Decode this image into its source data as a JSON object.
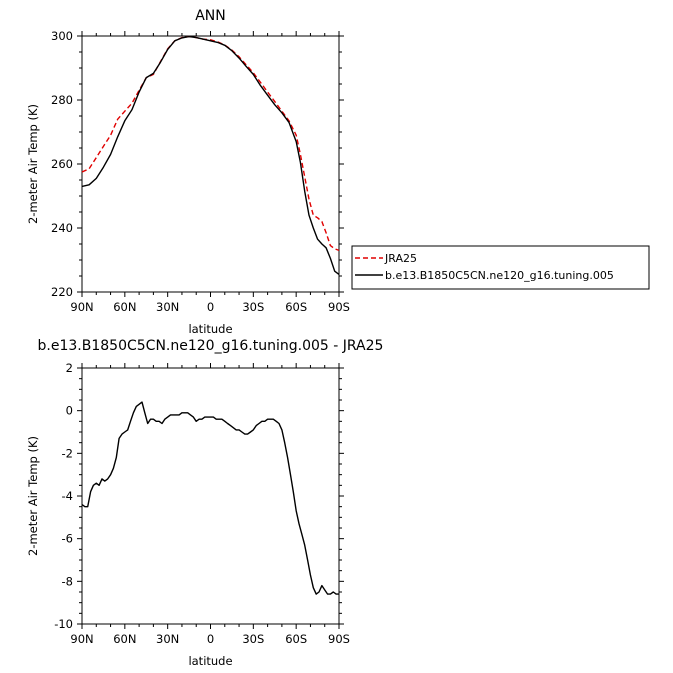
{
  "chart_data": [
    {
      "type": "line",
      "title": "ANN",
      "xlabel": "latitude",
      "ylabel": "2-meter Air Temp (K)",
      "x_ticks": [
        "90N",
        "60N",
        "30N",
        "0",
        "30S",
        "60S",
        "90S"
      ],
      "x_tick_values": [
        90,
        60,
        30,
        0,
        -30,
        -60,
        -90
      ],
      "xlim": [
        90,
        -90
      ],
      "ylim": [
        220,
        300
      ],
      "y_ticks": [
        "220",
        "240",
        "260",
        "280",
        "300"
      ],
      "y_tick_values": [
        220,
        240,
        260,
        280,
        300
      ],
      "legend_position": "right",
      "series": [
        {
          "name": "JRA25",
          "color": "#e00000",
          "dash": "dashed",
          "x": [
            90,
            85,
            80,
            75,
            70,
            65,
            60,
            55,
            50,
            45,
            40,
            35,
            30,
            25,
            20,
            15,
            10,
            5,
            0,
            -5,
            -10,
            -15,
            -20,
            -25,
            -30,
            -35,
            -40,
            -45,
            -50,
            -55,
            -60,
            -63,
            -66,
            -69,
            -72,
            -75,
            -78,
            -81,
            -84,
            -87,
            -90
          ],
          "y": [
            257.5,
            258.5,
            262,
            265.5,
            269,
            274,
            276.5,
            279,
            283,
            287,
            288,
            292,
            296,
            298.5,
            299.5,
            299.8,
            299.5,
            299,
            298.8,
            298.2,
            297.2,
            295.6,
            293.5,
            291,
            288.5,
            285.5,
            282.5,
            279.5,
            276.5,
            273.5,
            269,
            263,
            256,
            249,
            244,
            243.2,
            242,
            238.5,
            234.5,
            233.5,
            233
          ]
        },
        {
          "name": "b.e13.B1850C5CN.ne120_g16.tuning.005",
          "color": "#000000",
          "dash": "solid",
          "x": [
            90,
            85,
            80,
            75,
            70,
            65,
            60,
            55,
            50,
            45,
            40,
            35,
            30,
            25,
            20,
            15,
            10,
            5,
            0,
            -5,
            -10,
            -15,
            -20,
            -25,
            -30,
            -35,
            -40,
            -45,
            -50,
            -55,
            -60,
            -63,
            -66,
            -69,
            -72,
            -75,
            -78,
            -81,
            -84,
            -87,
            -90
          ],
          "y": [
            253,
            253.5,
            255.5,
            259,
            263,
            268.5,
            273.5,
            277,
            282.5,
            287,
            288.3,
            291.8,
            295.8,
            298.5,
            299.4,
            299.8,
            299.5,
            299,
            298.5,
            298,
            297.1,
            295.4,
            293.1,
            290.5,
            288,
            284.5,
            281.5,
            278.5,
            276,
            273,
            267,
            260.5,
            251.5,
            244,
            240,
            236.5,
            235,
            233.8,
            230.5,
            226.5,
            225.5
          ]
        }
      ]
    },
    {
      "type": "line",
      "title": "b.e13.B1850C5CN.ne120_g16.tuning.005 - JRA25",
      "xlabel": "latitude",
      "ylabel": "2-meter Air Temp (K)",
      "x_ticks": [
        "90N",
        "60N",
        "30N",
        "0",
        "30S",
        "60S",
        "90S"
      ],
      "x_tick_values": [
        90,
        60,
        30,
        0,
        -30,
        -60,
        -90
      ],
      "xlim": [
        90,
        -90
      ],
      "ylim": [
        -10,
        2
      ],
      "y_ticks": [
        "-10",
        "-8",
        "-6",
        "-4",
        "-2",
        "0",
        "2"
      ],
      "y_tick_values": [
        -10,
        -8,
        -6,
        -4,
        -2,
        0,
        2
      ],
      "series": [
        {
          "color": "#000000",
          "dash": "solid",
          "x": [
            90,
            88,
            86,
            84,
            82,
            80,
            78,
            76,
            74,
            72,
            70,
            68,
            66,
            64,
            62,
            60,
            58,
            56,
            54,
            52,
            50,
            48,
            46,
            44,
            42,
            40,
            38,
            36,
            34,
            32,
            30,
            28,
            26,
            24,
            22,
            20,
            18,
            16,
            14,
            12,
            10,
            8,
            6,
            4,
            2,
            0,
            -2,
            -4,
            -6,
            -8,
            -10,
            -12,
            -14,
            -16,
            -18,
            -20,
            -22,
            -24,
            -26,
            -28,
            -30,
            -32,
            -34,
            -36,
            -38,
            -40,
            -42,
            -44,
            -46,
            -48,
            -50,
            -52,
            -54,
            -56,
            -58,
            -60,
            -62,
            -64,
            -66,
            -68,
            -70,
            -72,
            -74,
            -76,
            -78,
            -80,
            -82,
            -84,
            -86,
            -88,
            -90
          ],
          "y": [
            -4.4,
            -4.5,
            -4.5,
            -3.8,
            -3.5,
            -3.4,
            -3.5,
            -3.2,
            -3.3,
            -3.2,
            -3.0,
            -2.7,
            -2.2,
            -1.3,
            -1.1,
            -1.0,
            -0.9,
            -0.5,
            -0.1,
            0.2,
            0.3,
            0.4,
            -0.1,
            -0.6,
            -0.4,
            -0.4,
            -0.5,
            -0.5,
            -0.6,
            -0.4,
            -0.3,
            -0.2,
            -0.2,
            -0.2,
            -0.2,
            -0.1,
            -0.1,
            -0.1,
            -0.2,
            -0.3,
            -0.5,
            -0.4,
            -0.4,
            -0.3,
            -0.3,
            -0.3,
            -0.3,
            -0.4,
            -0.4,
            -0.4,
            -0.5,
            -0.6,
            -0.7,
            -0.8,
            -0.9,
            -0.9,
            -1.0,
            -1.1,
            -1.1,
            -1.0,
            -0.9,
            -0.7,
            -0.6,
            -0.5,
            -0.5,
            -0.4,
            -0.4,
            -0.4,
            -0.5,
            -0.6,
            -0.9,
            -1.5,
            -2.2,
            -3.0,
            -3.8,
            -4.7,
            -5.3,
            -5.8,
            -6.3,
            -7.0,
            -7.7,
            -8.3,
            -8.6,
            -8.5,
            -8.2,
            -8.4,
            -8.6,
            -8.6,
            -8.5,
            -8.6,
            -8.6
          ]
        }
      ]
    }
  ]
}
